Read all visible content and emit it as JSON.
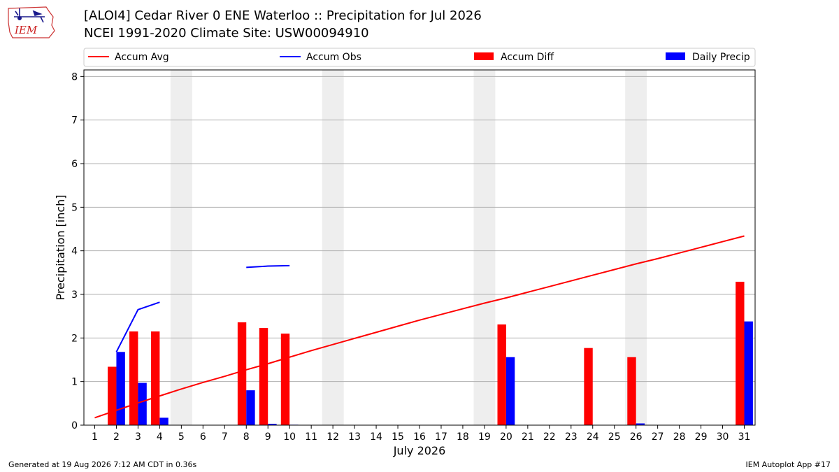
{
  "header": {
    "title_line1": "[ALOI4] Cedar River 0 ENE Waterloo :: Precipitation for Jul 2026",
    "title_line2": "NCEI 1991-2020 Climate Site: USW00094910",
    "logo_text": "IEM"
  },
  "footer": {
    "generated": "Generated at 19 Aug 2026 7:12 AM CDT in 0.36s",
    "app": "IEM Autoplot App #17"
  },
  "colors": {
    "accum_avg": "#ff0000",
    "accum_obs": "#0000ff",
    "accum_diff": "#ff0000",
    "daily_precip": "#0000ff",
    "weekend_band": "#eeeeee",
    "grid": "#b0b0b0"
  },
  "chart_data": {
    "type": "bar",
    "xlabel": "July 2026",
    "ylabel": "Precipitation [inch]",
    "xlim": [
      0.5,
      31.5
    ],
    "ylim": [
      0,
      8.15
    ],
    "yticks": [
      0,
      1,
      2,
      3,
      4,
      5,
      6,
      7,
      8
    ],
    "xticks": [
      1,
      2,
      3,
      4,
      5,
      6,
      7,
      8,
      9,
      10,
      11,
      12,
      13,
      14,
      15,
      16,
      17,
      18,
      19,
      20,
      21,
      22,
      23,
      24,
      25,
      26,
      27,
      28,
      29,
      30,
      31
    ],
    "grid": "horizontal",
    "legend_position": "top",
    "weekend_bands": [
      [
        4.5,
        5.5
      ],
      [
        11.5,
        12.5
      ],
      [
        18.5,
        19.5
      ],
      [
        25.5,
        26.5
      ]
    ],
    "legend": [
      "Accum Avg",
      "Accum Obs",
      "Accum Diff",
      "Daily Precip"
    ],
    "series": [
      {
        "name": "Accum Avg",
        "kind": "line",
        "x": [
          1,
          2,
          3,
          4,
          5,
          6,
          7,
          8,
          9,
          10,
          11,
          12,
          13,
          14,
          15,
          16,
          17,
          18,
          19,
          20,
          21,
          22,
          23,
          24,
          25,
          26,
          27,
          28,
          29,
          30,
          31
        ],
        "values": [
          0.17,
          0.34,
          0.51,
          0.67,
          0.83,
          0.98,
          1.12,
          1.27,
          1.41,
          1.56,
          1.71,
          1.85,
          1.99,
          2.13,
          2.27,
          2.41,
          2.54,
          2.67,
          2.8,
          2.92,
          3.05,
          3.18,
          3.31,
          3.44,
          3.57,
          3.7,
          3.82,
          3.95,
          4.08,
          4.21,
          4.34
        ]
      },
      {
        "name": "Accum Obs",
        "kind": "line",
        "segments": [
          {
            "x": [
              2,
              3,
              4
            ],
            "values": [
              1.68,
              2.65,
              2.82
            ]
          },
          {
            "x": [
              8,
              9,
              10
            ],
            "values": [
              3.62,
              3.65,
              3.66
            ]
          }
        ]
      },
      {
        "name": "Accum Diff",
        "kind": "bar",
        "x": [
          2,
          3,
          4,
          8,
          9,
          10,
          20,
          24,
          26,
          31
        ],
        "values": [
          1.34,
          2.15,
          2.15,
          2.36,
          2.23,
          2.1,
          2.31,
          1.77,
          1.56,
          3.29
        ]
      },
      {
        "name": "Daily Precip",
        "kind": "bar",
        "x": [
          2,
          3,
          4,
          8,
          9,
          10,
          20,
          26,
          31
        ],
        "values": [
          1.68,
          0.97,
          0.17,
          0.8,
          0.03,
          0.01,
          1.56,
          0.04,
          2.38
        ]
      }
    ]
  }
}
